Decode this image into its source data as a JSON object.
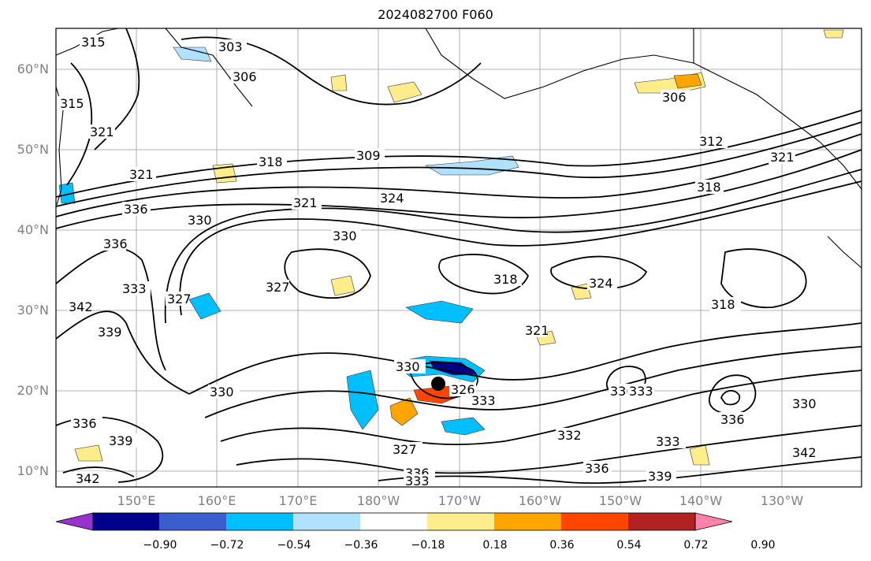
{
  "title": "2024082700 F060",
  "map": {
    "lat_ticks": [
      "60°N",
      "50°N",
      "40°N",
      "30°N",
      "20°N",
      "10°N"
    ],
    "lon_ticks": [
      "150°E",
      "160°E",
      "170°E",
      "180°W",
      "170°W",
      "160°W",
      "150°W",
      "140°W",
      "130°W"
    ],
    "contour_labels": [
      "315",
      "303",
      "306",
      "315",
      "321",
      "309",
      "318",
      "312",
      "306",
      "321",
      "318",
      "321",
      "321",
      "324",
      "336",
      "330",
      "336",
      "330",
      "327",
      "318",
      "324",
      "318",
      "333",
      "342",
      "339",
      "321",
      "327",
      "330",
      "336",
      "333",
      "326",
      "333",
      "330",
      "336",
      "339",
      "327",
      "336",
      "333",
      "342",
      "336",
      "333",
      "336",
      "339",
      "332",
      "342",
      "330"
    ],
    "storm_marker": "black-dot"
  },
  "colorbar": {
    "colors": [
      "#9932cc",
      "#00008b",
      "#3a5fcd",
      "#00bfff",
      "#b0e2ff",
      "#ffffff",
      "#ffec8b",
      "#ffa500",
      "#ff4500",
      "#b22222",
      "#ff82ab"
    ],
    "labels": [
      "−0.90",
      "−0.72",
      "−0.54",
      "−0.36",
      "−0.18",
      "0.18",
      "0.36",
      "0.54",
      "0.72",
      "0.90"
    ]
  }
}
